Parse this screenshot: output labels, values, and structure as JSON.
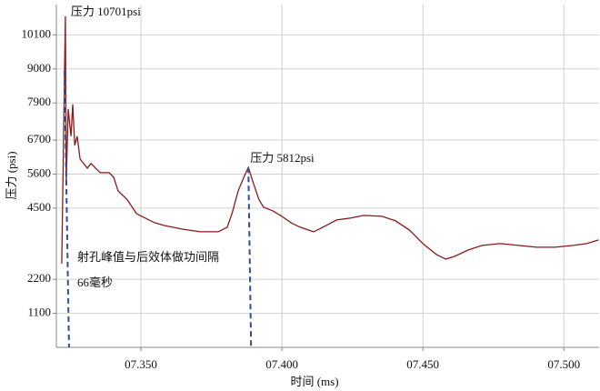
{
  "chart_data": {
    "type": "line",
    "xlabel": "时间 (ms)",
    "ylabel": "压力 (psi)",
    "x": [
      7.3219,
      7.3232,
      7.3235,
      7.3242,
      7.3252,
      7.3258,
      7.3265,
      7.3274,
      7.3284,
      7.3297,
      7.331,
      7.3323,
      7.3355,
      7.3387,
      7.3403,
      7.3419,
      7.3452,
      7.3484,
      7.3516,
      7.3548,
      7.3581,
      7.3645,
      7.371,
      7.3774,
      7.3806,
      7.3823,
      7.3845,
      7.3865,
      7.3881,
      7.3897,
      7.3919,
      7.3935,
      7.3968,
      7.4,
      7.4032,
      7.4065,
      7.4113,
      7.4145,
      7.4194,
      7.4242,
      7.429,
      7.4355,
      7.4403,
      7.4452,
      7.45,
      7.4548,
      7.4581,
      7.4613,
      7.4661,
      7.471,
      7.4774,
      7.4839,
      7.4903,
      7.4968,
      7.5032,
      7.5081,
      7.5123
    ],
    "series": [
      {
        "name": "压力",
        "color": "#8b1a1a",
        "values": [
          2706,
          10701,
          5353,
          7706,
          6824,
          7853,
          6529,
          6824,
          6088,
          5941,
          5794,
          5941,
          5647,
          5647,
          5500,
          5059,
          4765,
          4324,
          4176,
          4029,
          3941,
          3824,
          3735,
          3735,
          3882,
          4324,
          5059,
          5500,
          5812,
          5353,
          4765,
          4529,
          4412,
          4235,
          4029,
          3882,
          3735,
          3882,
          4118,
          4176,
          4265,
          4235,
          4088,
          3794,
          3353,
          3000,
          2853,
          2941,
          3147,
          3294,
          3353,
          3294,
          3235,
          3235,
          3294,
          3353,
          3471
        ]
      }
    ],
    "xlim": [
      7.32,
      7.5125
    ],
    "xticks": [
      {
        "value": 7.35,
        "label": "07.350"
      },
      {
        "value": 7.4,
        "label": "07.400"
      },
      {
        "value": 7.45,
        "label": "07.450"
      },
      {
        "value": 7.5,
        "label": "07.500"
      }
    ],
    "ylim": [
      0,
      11080
    ],
    "yticks": [
      1100,
      2200,
      4500,
      5600,
      6700,
      7900,
      9000,
      10100
    ],
    "grid": true,
    "annotations": [
      "压力 10701psi",
      "压力  5812psi",
      "射孔峰值与后效体做功间隔",
      "66毫秒"
    ]
  }
}
